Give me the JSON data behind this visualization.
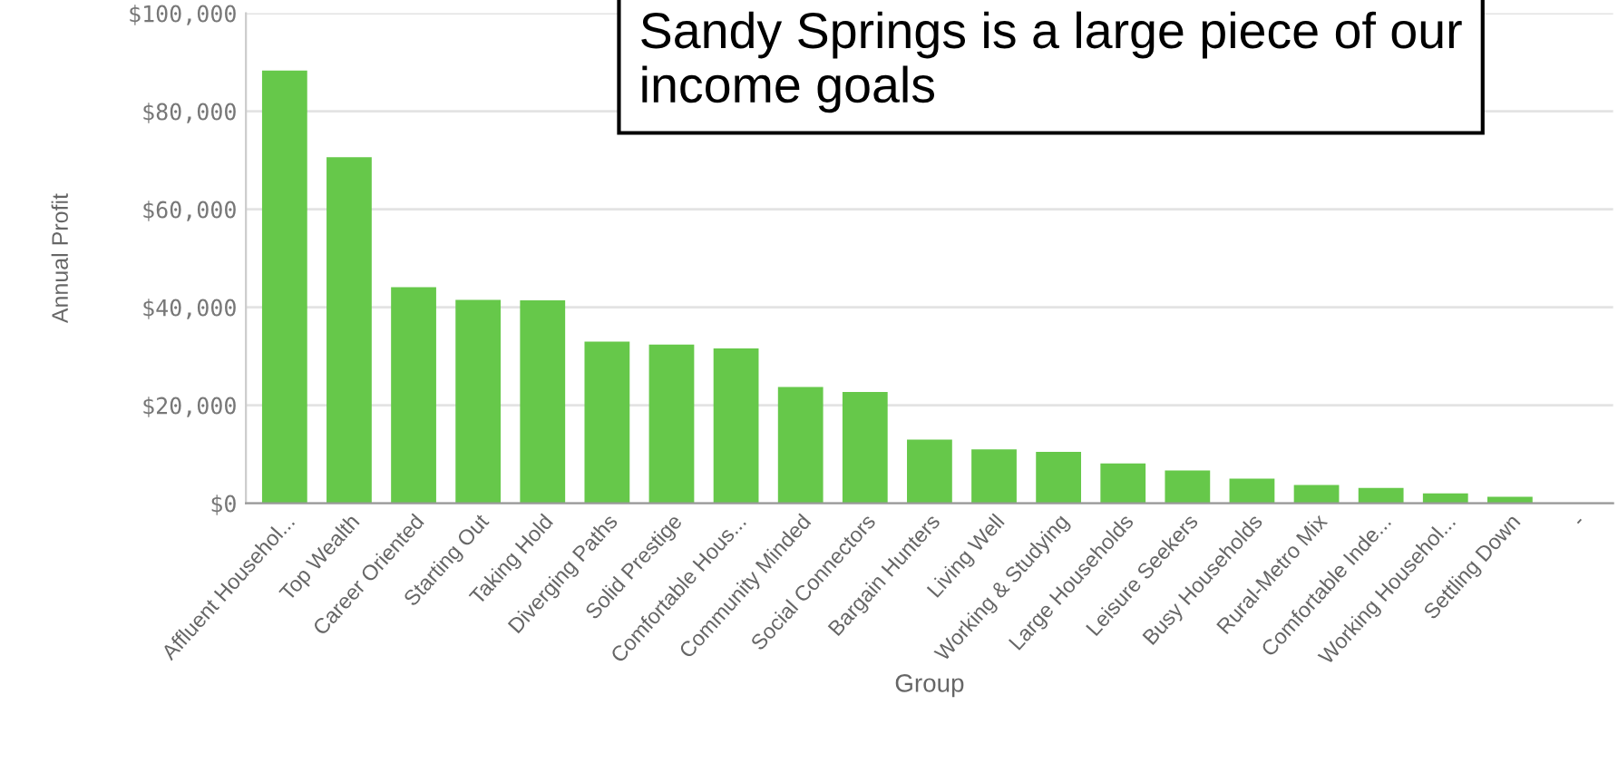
{
  "chart_data": {
    "type": "bar",
    "xlabel": "Group",
    "ylabel": "Annual Profit",
    "categories": [
      "Affluent Househol...",
      "Top Wealth",
      "Career Oriented",
      "Starting Out",
      "Taking Hold",
      "Diverging Paths",
      "Solid Prestige",
      "Comfortable Hous...",
      "Community Minded",
      "Social Connectors",
      "Bargain Hunters",
      "Living Well",
      "Working & Studying",
      "Large Households",
      "Leisure Seekers",
      "Busy Households",
      "Rural-Metro Mix",
      "Comfortable Inde...",
      "Working Househol...",
      "Settling Down",
      "-"
    ],
    "values": [
      88300,
      70600,
      44100,
      41500,
      41400,
      33000,
      32400,
      31600,
      23700,
      22700,
      13000,
      11000,
      10500,
      8100,
      6700,
      5000,
      3700,
      3100,
      2000,
      1300,
      null
    ],
    "color": "#66c84a",
    "ylim": [
      0,
      100000
    ],
    "yticks": [
      {
        "value": 0,
        "label": "$0"
      },
      {
        "value": 20000,
        "label": "$20,000"
      },
      {
        "value": 40000,
        "label": "$40,000"
      },
      {
        "value": 60000,
        "label": "$60,000"
      },
      {
        "value": 80000,
        "label": "$80,000"
      },
      {
        "value": 100000,
        "label": "$100,000"
      }
    ],
    "grid": "y",
    "annotations": [
      "Sandy Springs is a large piece of our income goals"
    ]
  }
}
